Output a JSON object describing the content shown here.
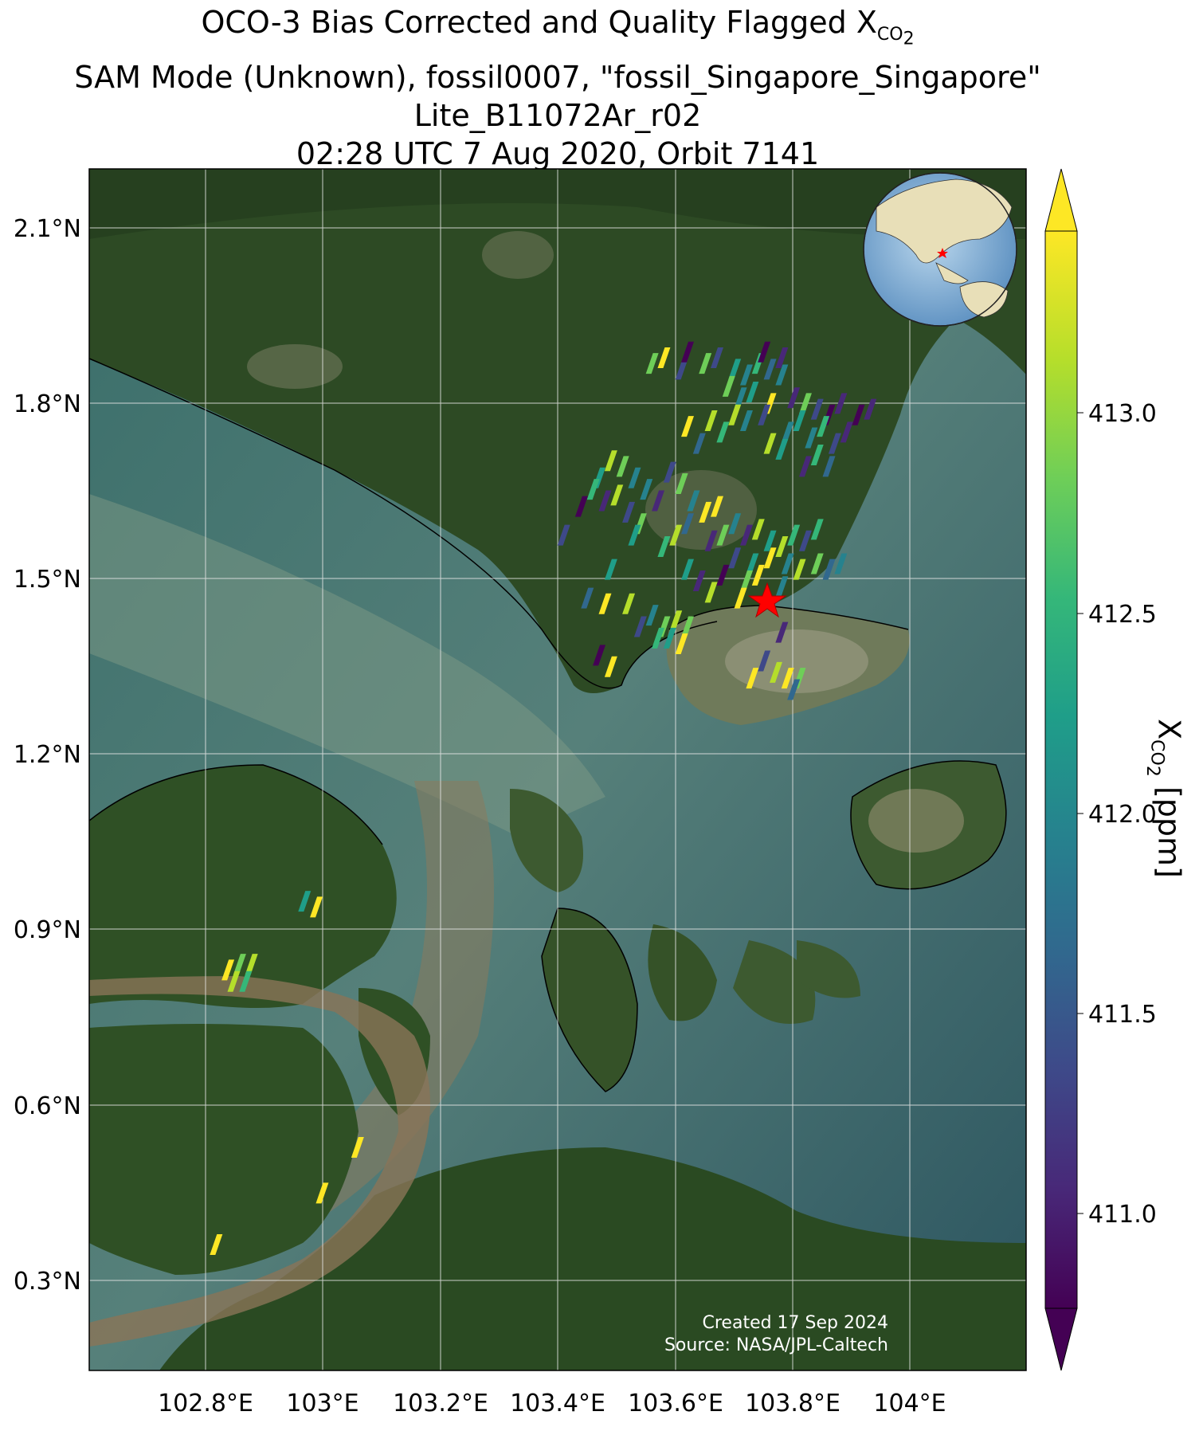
{
  "title": {
    "line1_prefix": "OCO-3 Bias Corrected and Quality Flagged X",
    "line1_sub": "CO",
    "line1_sub2": "2",
    "line2": "SAM Mode (Unknown), fossil0007, \"fossil_Singapore_Singapore\"",
    "line3": "Lite_B11072Ar_r02",
    "line4": "02:28 UTC 7 Aug 2020, Orbit 7141"
  },
  "axes": {
    "lon_ticks": [
      "102.8°E",
      "103°E",
      "103.2°E",
      "103.4°E",
      "103.6°E",
      "103.8°E",
      "104°E"
    ],
    "lat_ticks": [
      "2.1°N",
      "1.8°N",
      "1.5°N",
      "1.2°N",
      "0.9°N",
      "0.6°N",
      "0.3°N"
    ]
  },
  "colorbar": {
    "label_prefix": "X",
    "label_sub": "CO",
    "label_sub2": "2",
    "label_suffix": " [ppm]",
    "ticks": [
      "413.0",
      "412.5",
      "412.0",
      "411.5",
      "411.0"
    ],
    "colors": [
      "#440154",
      "#482878",
      "#3e4989",
      "#31688e",
      "#26828e",
      "#1f9e89",
      "#35b779",
      "#6ece58",
      "#b5de2b",
      "#fde725"
    ]
  },
  "annotations": {
    "created": "Created 17 Sep 2024",
    "source": "Source: NASA/JPL-Caltech"
  },
  "target_marker": "red-star",
  "inset_globe": "globe-icon",
  "chart_data": {
    "type": "scatter",
    "lon_range": [
      102.61,
      104.2
    ],
    "lat_range": [
      0.1,
      2.2
    ],
    "colorbar_range": [
      410.7,
      413.4
    ],
    "target": {
      "lon": 103.75,
      "lat": 1.47
    },
    "points": [
      [
        103.56,
        1.86,
        412.8
      ],
      [
        103.58,
        1.87,
        413.2
      ],
      [
        103.61,
        1.85,
        411.3
      ],
      [
        103.62,
        1.88,
        410.9
      ],
      [
        103.65,
        1.86,
        412.6
      ],
      [
        103.67,
        1.87,
        411.5
      ],
      [
        103.7,
        1.85,
        412.1
      ],
      [
        103.72,
        1.84,
        411.9
      ],
      [
        103.74,
        1.86,
        412.4
      ],
      [
        103.76,
        1.85,
        411.6
      ],
      [
        103.78,
        1.84,
        412.0
      ],
      [
        103.75,
        1.88,
        410.9
      ],
      [
        103.78,
        1.87,
        411.2
      ],
      [
        103.69,
        1.82,
        412.7
      ],
      [
        103.71,
        1.8,
        411.8
      ],
      [
        103.73,
        1.81,
        412.3
      ],
      [
        103.76,
        1.79,
        413.3
      ],
      [
        103.7,
        1.77,
        412.9
      ],
      [
        103.66,
        1.76,
        413.1
      ],
      [
        103.68,
        1.74,
        412.4
      ],
      [
        103.72,
        1.76,
        412.0
      ],
      [
        103.75,
        1.77,
        411.4
      ],
      [
        103.64,
        1.72,
        411.7
      ],
      [
        103.62,
        1.75,
        413.3
      ],
      [
        103.8,
        1.8,
        411.0
      ],
      [
        103.82,
        1.79,
        412.6
      ],
      [
        103.84,
        1.78,
        411.3
      ],
      [
        103.86,
        1.77,
        410.9
      ],
      [
        103.88,
        1.79,
        411.2
      ],
      [
        103.85,
        1.75,
        412.5
      ],
      [
        103.83,
        1.73,
        411.8
      ],
      [
        103.87,
        1.72,
        411.5
      ],
      [
        103.89,
        1.74,
        411.0
      ],
      [
        103.91,
        1.77,
        410.8
      ],
      [
        103.93,
        1.78,
        411.1
      ],
      [
        103.81,
        1.76,
        412.2
      ],
      [
        103.79,
        1.74,
        411.9
      ],
      [
        103.84,
        1.7,
        412.4
      ],
      [
        103.86,
        1.68,
        411.6
      ],
      [
        103.82,
        1.68,
        411.0
      ],
      [
        103.78,
        1.71,
        412.1
      ],
      [
        103.76,
        1.72,
        413.0
      ],
      [
        103.49,
        1.69,
        413.1
      ],
      [
        103.51,
        1.68,
        412.6
      ],
      [
        103.53,
        1.66,
        411.8
      ],
      [
        103.47,
        1.66,
        412.2
      ],
      [
        103.5,
        1.63,
        412.9
      ],
      [
        103.52,
        1.6,
        411.4
      ],
      [
        103.48,
        1.62,
        411.0
      ],
      [
        103.46,
        1.64,
        412.5
      ],
      [
        103.55,
        1.64,
        412.0
      ],
      [
        103.57,
        1.62,
        411.2
      ],
      [
        103.54,
        1.58,
        412.7
      ],
      [
        103.53,
        1.56,
        412.3
      ],
      [
        103.44,
        1.61,
        410.9
      ],
      [
        103.59,
        1.67,
        411.5
      ],
      [
        103.61,
        1.65,
        412.8
      ],
      [
        103.63,
        1.62,
        412.0
      ],
      [
        103.65,
        1.6,
        413.2
      ],
      [
        103.67,
        1.61,
        413.3
      ],
      [
        103.62,
        1.58,
        411.7
      ],
      [
        103.6,
        1.56,
        413.0
      ],
      [
        103.58,
        1.54,
        412.4
      ],
      [
        103.66,
        1.55,
        411.2
      ],
      [
        103.68,
        1.56,
        412.6
      ],
      [
        103.7,
        1.58,
        411.8
      ],
      [
        103.72,
        1.56,
        411.0
      ],
      [
        103.74,
        1.57,
        412.9
      ],
      [
        103.76,
        1.55,
        412.1
      ],
      [
        103.78,
        1.54,
        413.0
      ],
      [
        103.8,
        1.56,
        412.5
      ],
      [
        103.82,
        1.55,
        411.3
      ],
      [
        103.84,
        1.57,
        412.4
      ],
      [
        103.7,
        1.52,
        411.5
      ],
      [
        103.73,
        1.51,
        412.2
      ],
      [
        103.76,
        1.52,
        413.3
      ],
      [
        103.79,
        1.51,
        411.9
      ],
      [
        103.81,
        1.5,
        413.1
      ],
      [
        103.84,
        1.51,
        412.8
      ],
      [
        103.86,
        1.5,
        411.6
      ],
      [
        103.88,
        1.51,
        412.0
      ],
      [
        103.68,
        1.49,
        410.9
      ],
      [
        103.72,
        1.48,
        412.6
      ],
      [
        103.74,
        1.49,
        413.3
      ],
      [
        103.78,
        1.47,
        412.0
      ],
      [
        103.71,
        1.45,
        413.2
      ],
      [
        103.62,
        1.5,
        412.3
      ],
      [
        103.64,
        1.48,
        411.1
      ],
      [
        103.66,
        1.46,
        413.0
      ],
      [
        103.41,
        1.56,
        411.4
      ],
      [
        103.49,
        1.5,
        412.3
      ],
      [
        103.45,
        1.45,
        411.6
      ],
      [
        103.48,
        1.44,
        413.3
      ],
      [
        103.52,
        1.44,
        413.0
      ],
      [
        103.56,
        1.42,
        411.9
      ],
      [
        103.58,
        1.4,
        412.7
      ],
      [
        103.6,
        1.41,
        413.1
      ],
      [
        103.62,
        1.4,
        412.8
      ],
      [
        103.57,
        1.38,
        412.5
      ],
      [
        103.59,
        1.38,
        412.2
      ],
      [
        103.61,
        1.37,
        413.3
      ],
      [
        103.54,
        1.4,
        411.5
      ],
      [
        103.47,
        1.35,
        410.9
      ],
      [
        103.49,
        1.33,
        413.2
      ],
      [
        103.78,
        1.39,
        411.1
      ],
      [
        103.75,
        1.34,
        411.3
      ],
      [
        103.77,
        1.32,
        413.0
      ],
      [
        103.79,
        1.31,
        413.3
      ],
      [
        103.73,
        1.31,
        413.2
      ],
      [
        103.81,
        1.31,
        412.6
      ],
      [
        103.8,
        1.29,
        411.6
      ],
      [
        102.97,
        0.92,
        412.3
      ],
      [
        102.99,
        0.91,
        413.3
      ],
      [
        102.84,
        0.8,
        413.3
      ],
      [
        102.86,
        0.81,
        412.8
      ],
      [
        102.88,
        0.81,
        413.1
      ],
      [
        102.85,
        0.78,
        413.0
      ],
      [
        102.87,
        0.78,
        412.4
      ],
      [
        103.06,
        0.49,
        413.3
      ],
      [
        103.0,
        0.41,
        413.3
      ],
      [
        102.82,
        0.32,
        413.3
      ]
    ]
  }
}
